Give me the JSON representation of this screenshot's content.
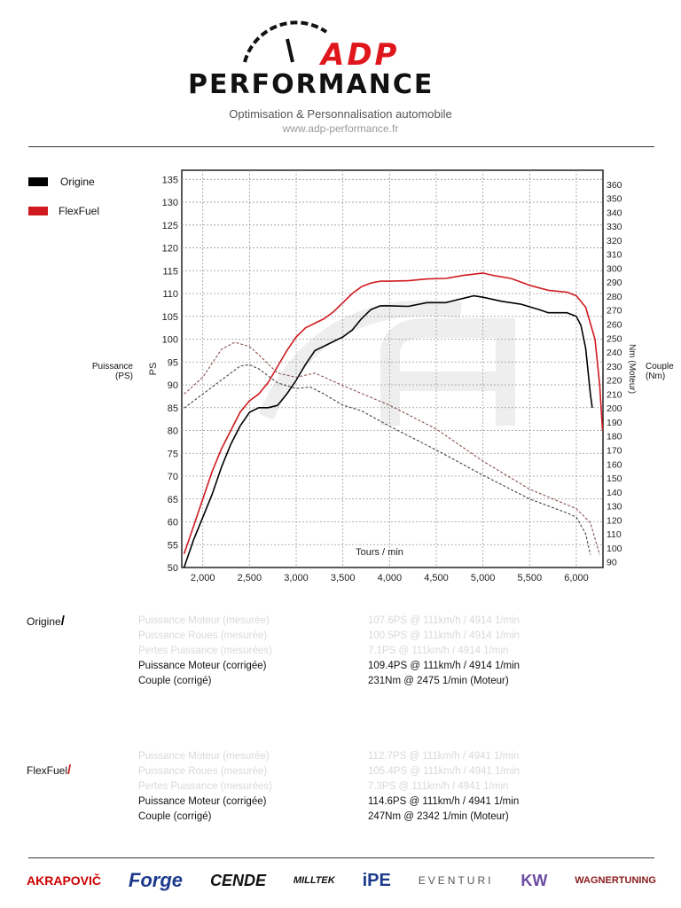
{
  "header": {
    "logo_line1": "ADP",
    "logo_line2": "PERFORMANCE",
    "tagline": "Optimisation & Personnalisation automobile",
    "url": "www.adp-performance.fr"
  },
  "legend": [
    {
      "label": "Origine",
      "color": "#000000"
    },
    {
      "label": "FlexFuel",
      "color": "#d01a1f"
    }
  ],
  "axis_side_labels": {
    "left": "Puissance (PS)",
    "left_line1": "Puissance",
    "left_line2": "(PS)",
    "left_axis": "PS",
    "right_line1": "Couple",
    "right_line2": "(Nm)",
    "right_axis": "Nm (Moteur)"
  },
  "chart_data": {
    "type": "line",
    "xlabel": "Tours / min",
    "ylabel": "PS",
    "y2label": "Nm (Moteur)",
    "xlim": [
      1775,
      6285
    ],
    "ylim": [
      50,
      137
    ],
    "y2lim": [
      86,
      370
    ],
    "xticks": [
      "2,000",
      "2,500",
      "3,000",
      "3,500",
      "4,000",
      "4,500",
      "5,000",
      "5,500",
      "6,000"
    ],
    "xtick_values": [
      2000,
      2500,
      3000,
      3500,
      4000,
      4500,
      5000,
      5500,
      6000
    ],
    "yticks": [
      50,
      55,
      60,
      65,
      70,
      75,
      80,
      85,
      90,
      95,
      100,
      105,
      110,
      115,
      120,
      125,
      130,
      135
    ],
    "y2ticks": [
      90,
      100,
      110,
      120,
      130,
      140,
      150,
      160,
      170,
      180,
      190,
      200,
      210,
      220,
      230,
      240,
      250,
      260,
      270,
      280,
      290,
      300,
      310,
      320,
      330,
      340,
      350,
      360
    ],
    "grid": true,
    "legend": "top-left",
    "series": [
      {
        "name": "Origine",
        "quantity": "power",
        "axis": "left",
        "color": "#000000",
        "style": "solid",
        "x": [
          1800,
          1900,
          2000,
          2100,
          2200,
          2300,
          2400,
          2500,
          2600,
          2700,
          2800,
          2900,
          3000,
          3100,
          3200,
          3300,
          3400,
          3500,
          3600,
          3700,
          3800,
          3900,
          4000,
          4200,
          4400,
          4600,
          4800,
          4900,
          5000,
          5200,
          5400,
          5600,
          5700,
          5900,
          6000,
          6050,
          6100,
          6150,
          6170
        ],
        "y": [
          50,
          56,
          61,
          66,
          72,
          77,
          81,
          84,
          85,
          85,
          85.5,
          88,
          91,
          94.5,
          97.5,
          98.5,
          99.5,
          100.5,
          102,
          104.5,
          106.5,
          107.3,
          107.3,
          107.2,
          108,
          108,
          109,
          109.5,
          109.2,
          108.3,
          107.7,
          106.5,
          105.8,
          105.8,
          105,
          103,
          98,
          88,
          85
        ]
      },
      {
        "name": "FlexFuel",
        "quantity": "power",
        "axis": "left",
        "color": "#d01a1f",
        "style": "solid",
        "x": [
          1800,
          1900,
          2000,
          2100,
          2200,
          2300,
          2400,
          2500,
          2600,
          2700,
          2800,
          2900,
          3000,
          3100,
          3200,
          3300,
          3400,
          3500,
          3600,
          3700,
          3800,
          3900,
          4000,
          4200,
          4400,
          4600,
          4800,
          5000,
          5100,
          5300,
          5500,
          5700,
          5900,
          6000,
          6100,
          6200,
          6250,
          6280
        ],
        "y": [
          53,
          59,
          65,
          71,
          76,
          80,
          84,
          86.5,
          88,
          90.5,
          94,
          97.5,
          100.5,
          102.5,
          103.5,
          104.5,
          106,
          108,
          110,
          111.5,
          112.3,
          112.7,
          112.7,
          112.8,
          113.2,
          113.3,
          114,
          114.5,
          114,
          113.3,
          111.8,
          110.7,
          110.3,
          109.5,
          107,
          100,
          90,
          80
        ]
      },
      {
        "name": "Origine",
        "quantity": "torque",
        "axis": "right",
        "color": "#444444",
        "style": "dashed",
        "x": [
          1800,
          2000,
          2200,
          2400,
          2500,
          2600,
          2800,
          3000,
          3150,
          3300,
          3500,
          3700,
          4000,
          4500,
          5000,
          5500,
          5900,
          6000,
          6100,
          6150
        ],
        "y": [
          200,
          210,
          220,
          230,
          231,
          228,
          218,
          214,
          215,
          210,
          202,
          198,
          187,
          170,
          152,
          135,
          125,
          122,
          110,
          95
        ]
      },
      {
        "name": "FlexFuel",
        "quantity": "torque",
        "axis": "right",
        "color": "#8a5050",
        "style": "dashed",
        "x": [
          1800,
          2000,
          2100,
          2200,
          2342,
          2500,
          2600,
          2800,
          3000,
          3200,
          3500,
          4000,
          4500,
          5000,
          5500,
          6000,
          6150,
          6250
        ],
        "y": [
          210,
          222,
          232,
          242,
          247,
          244,
          238,
          225,
          222,
          225,
          216,
          202,
          185,
          162,
          142,
          128,
          118,
          95
        ]
      }
    ]
  },
  "results": [
    {
      "run": "Origine",
      "mark_color": "#000000",
      "rows": [
        {
          "label": "Puissance Moteur (mesurée)",
          "value": "107.6PS @ 111km/h / 4914 1/min",
          "muted": true
        },
        {
          "label": "Puissance Roues (mesurée)",
          "value": "100.5PS @ 111km/h / 4914 1/min",
          "muted": true
        },
        {
          "label": "Pertes Puissance (mesurées)",
          "value": "7.1PS @ 111km/h / 4914 1/min",
          "muted": true
        },
        {
          "label": "Puissance Moteur (corrigée)",
          "value": "109.4PS @ 111km/h / 4914 1/min",
          "muted": false
        },
        {
          "label": "Couple (corrigé)",
          "value": "231Nm @ 2475 1/min (Moteur)",
          "muted": false
        }
      ]
    },
    {
      "run": "FlexFuel",
      "mark_color": "#d01a1f",
      "rows": [
        {
          "label": "Puissance Moteur (mesurée)",
          "value": "112.7PS @ 111km/h / 4941 1/min",
          "muted": true
        },
        {
          "label": "Puissance Roues (mesurée)",
          "value": "105.4PS @ 111km/h / 4941 1/min",
          "muted": true
        },
        {
          "label": "Pertes Puissance (mesurées)",
          "value": "7.3PS @ 111km/h / 4941 1/min",
          "muted": true
        },
        {
          "label": "Puissance Moteur (corrigée)",
          "value": "114.6PS @ 111km/h / 4941 1/min",
          "muted": false
        },
        {
          "label": "Couple (corrigé)",
          "value": "247Nm @ 2342 1/min (Moteur)",
          "muted": false
        }
      ]
    }
  ],
  "brands": [
    "AKRAPOVIČ",
    "Forge",
    "CENDE",
    "MILLTEK",
    "iPE",
    "EVENTURI",
    "KW",
    "WAGNERTUNING"
  ]
}
